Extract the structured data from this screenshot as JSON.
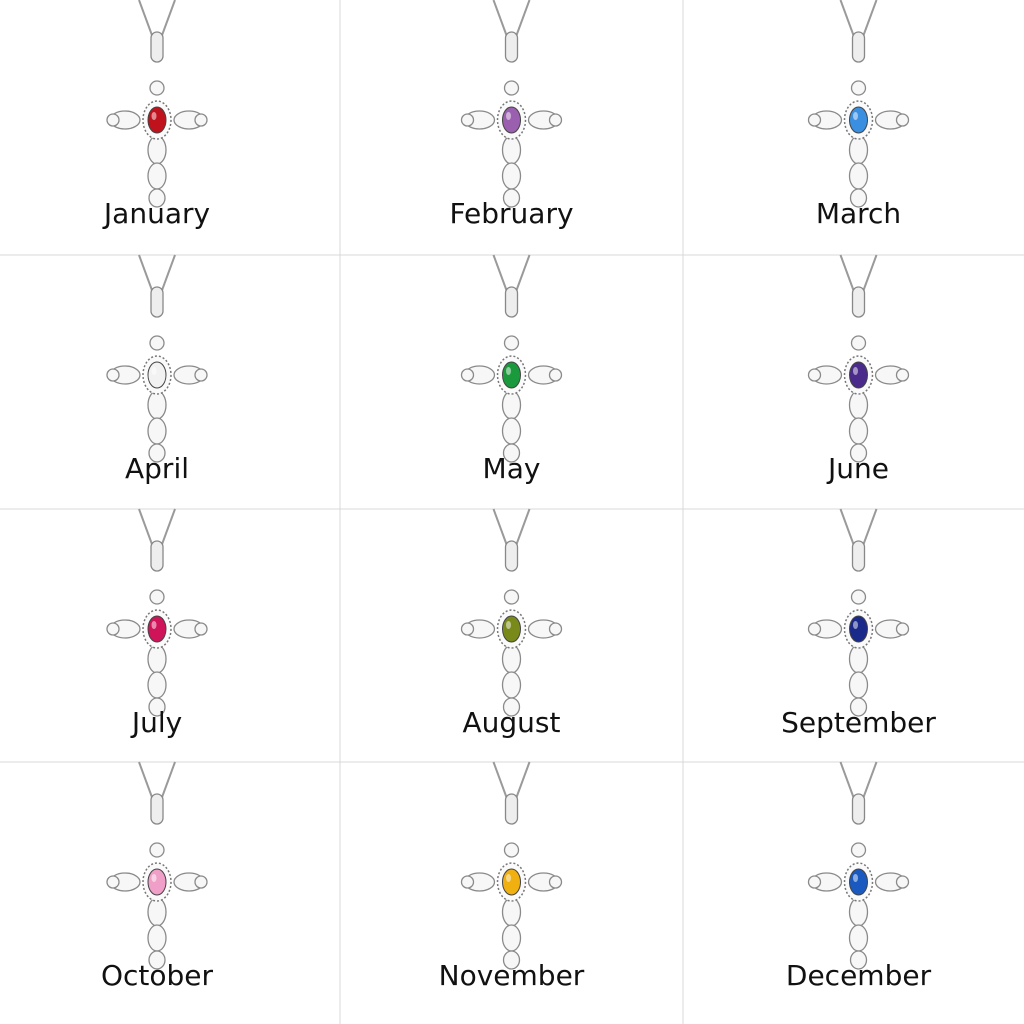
{
  "items": [
    {
      "label": "January",
      "gem_color": "#c0121c"
    },
    {
      "label": "February",
      "gem_color": "#9b5fb0"
    },
    {
      "label": "March",
      "gem_color": "#3a8fe0"
    },
    {
      "label": "April",
      "gem_color": "#f2f2f2"
    },
    {
      "label": "May",
      "gem_color": "#1a9a3c"
    },
    {
      "label": "June",
      "gem_color": "#4a2a8a"
    },
    {
      "label": "July",
      "gem_color": "#d0145a"
    },
    {
      "label": "August",
      "gem_color": "#7a8a1a"
    },
    {
      "label": "September",
      "gem_color": "#1a2a8a"
    },
    {
      "label": "October",
      "gem_color": "#f0a0c8"
    },
    {
      "label": "November",
      "gem_color": "#f0b010"
    },
    {
      "label": "December",
      "gem_color": "#1a5ac0"
    }
  ]
}
